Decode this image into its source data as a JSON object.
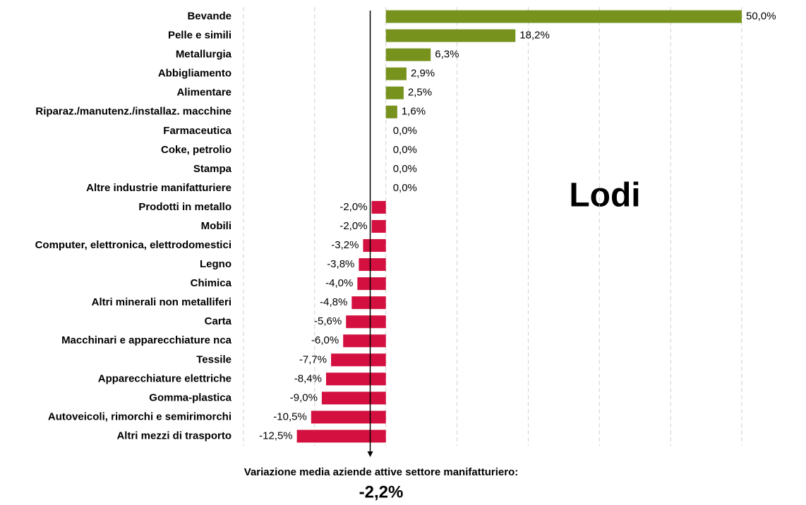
{
  "chart_data": {
    "type": "barh",
    "annotation": "Lodi",
    "categories": [
      "Bevande",
      "Pelle e simili",
      "Metallurgia",
      "Abbigliamento",
      "Alimentare",
      "Riparaz./manutenz./installaz. macchine",
      "Farmaceutica",
      "Coke, petrolio",
      "Stampa",
      "Altre industrie manifatturiere",
      "Prodotti in metallo",
      "Mobili",
      "Computer, elettronica, elettrodomestici",
      "Legno",
      "Chimica",
      "Altri minerali non metalliferi",
      "Carta",
      "Macchinari e apparecchiature nca",
      "Tessile",
      "Apparecchiature elettriche",
      "Gomma-plastica",
      "Autoveicoli, rimorchi e semirimorchi",
      "Altri mezzi di trasporto"
    ],
    "values": [
      50.0,
      18.2,
      6.3,
      2.9,
      2.5,
      1.6,
      0.0,
      0.0,
      0.0,
      0.0,
      -2.0,
      -2.0,
      -3.2,
      -3.8,
      -4.0,
      -4.8,
      -5.6,
      -6.0,
      -7.7,
      -8.4,
      -9.0,
      -10.5,
      -12.5
    ],
    "value_labels": [
      "50,0%",
      "18,2%",
      "6,3%",
      "2,9%",
      "2,5%",
      "1,6%",
      "0,0%",
      "0,0%",
      "0,0%",
      "0,0%",
      "-2,0%",
      "-2,0%",
      "-3,2%",
      "-3,8%",
      "-4,0%",
      "-4,8%",
      "-5,6%",
      "-6,0%",
      "-7,7%",
      "-8,4%",
      "-9,0%",
      "-10,5%",
      "-12,5%"
    ],
    "positive_color": "#77931e",
    "negative_color": "#d3103f",
    "xlim": [
      -20,
      50
    ],
    "xticks": [
      -20,
      -10,
      0,
      10,
      20,
      30,
      40,
      50
    ],
    "grid": true,
    "average": {
      "value": -2.2,
      "label": "-2,2%",
      "text": "Variazione media aziende attive settore manifatturiero:"
    }
  }
}
